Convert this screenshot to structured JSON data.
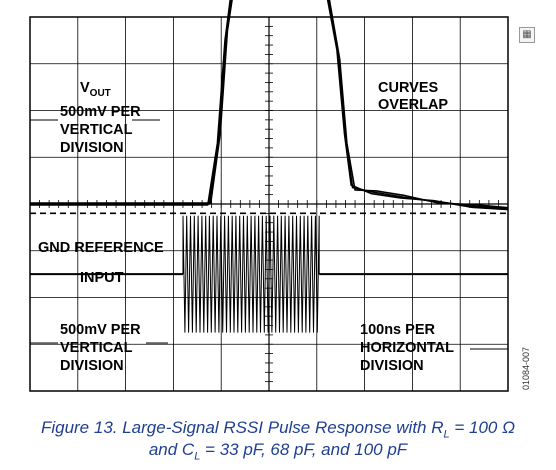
{
  "figure_id": "01084-007",
  "icons": {
    "corner": "grid-icon"
  },
  "caption": {
    "line1_prefix": "Figure 13. Large-Signal RSSI Pulse Response with R",
    "line1_sub": "L",
    "line1_suffix": " = 100 Ω",
    "line2_prefix": "and C",
    "line2_sub": "L",
    "line2_suffix": " = 33 pF, 68 pF, and 100 pF"
  },
  "chart_data": {
    "type": "line",
    "title": "",
    "xlabel": "",
    "ylabel": "",
    "grid": true,
    "divisions": {
      "horizontal": 10,
      "vertical": 8
    },
    "labels": {
      "vout_main": "V",
      "vout_sub": "OUT",
      "vout_scale_1": "500mV PER",
      "vout_scale_2": "VERTICAL",
      "vout_scale_3": "DIVISION",
      "curves_1": "CURVES",
      "curves_2": "OVERLAP",
      "gnd": "GND REFERENCE",
      "input": "INPUT",
      "input_scale_1": "500mV PER",
      "input_scale_2": "VERTICAL",
      "input_scale_3": "DIVISION",
      "time_1": "100ns PER",
      "time_2": "HORIZONTAL",
      "time_3": "DIVISION"
    },
    "vout_traces_div": [
      {
        "name": "",
        "x": [
          0,
          3.75,
          3.95,
          4.1,
          4.3,
          5.5,
          6.1,
          6.45,
          6.6,
          6.75,
          7.2,
          7.8,
          8.5,
          9.3,
          10
        ],
        "y": [
          0.2,
          0.2,
          1.6,
          3.8,
          5.35,
          5.4,
          5.4,
          3.4,
          1.6,
          0.55,
          0.45,
          0.35,
          0.25,
          0.15,
          0.1
        ]
      },
      {
        "name": "",
        "x": [
          0,
          3.78,
          3.98,
          4.13,
          4.35,
          5.5,
          6.12,
          6.48,
          6.63,
          6.8,
          7.25,
          7.85,
          8.55,
          9.35,
          10
        ],
        "y": [
          0.22,
          0.22,
          1.7,
          3.9,
          5.4,
          5.45,
          5.42,
          3.3,
          1.5,
          0.5,
          0.48,
          0.38,
          0.22,
          0.18,
          0.12
        ]
      },
      {
        "name": "",
        "x": [
          0,
          3.72,
          3.92,
          4.08,
          4.28,
          5.5,
          6.08,
          6.42,
          6.58,
          6.72,
          7.15,
          7.75,
          8.45,
          9.25,
          10
        ],
        "y": [
          0.18,
          0.18,
          1.5,
          3.7,
          5.3,
          5.36,
          5.38,
          3.5,
          1.7,
          0.6,
          0.42,
          0.33,
          0.27,
          0.13,
          0.08
        ]
      }
    ],
    "input_baseline_div": -1.3,
    "input_burst": {
      "start_div": 3.2,
      "end_div": 6.05,
      "amplitude_div": 1.25,
      "cycles": 36
    }
  }
}
